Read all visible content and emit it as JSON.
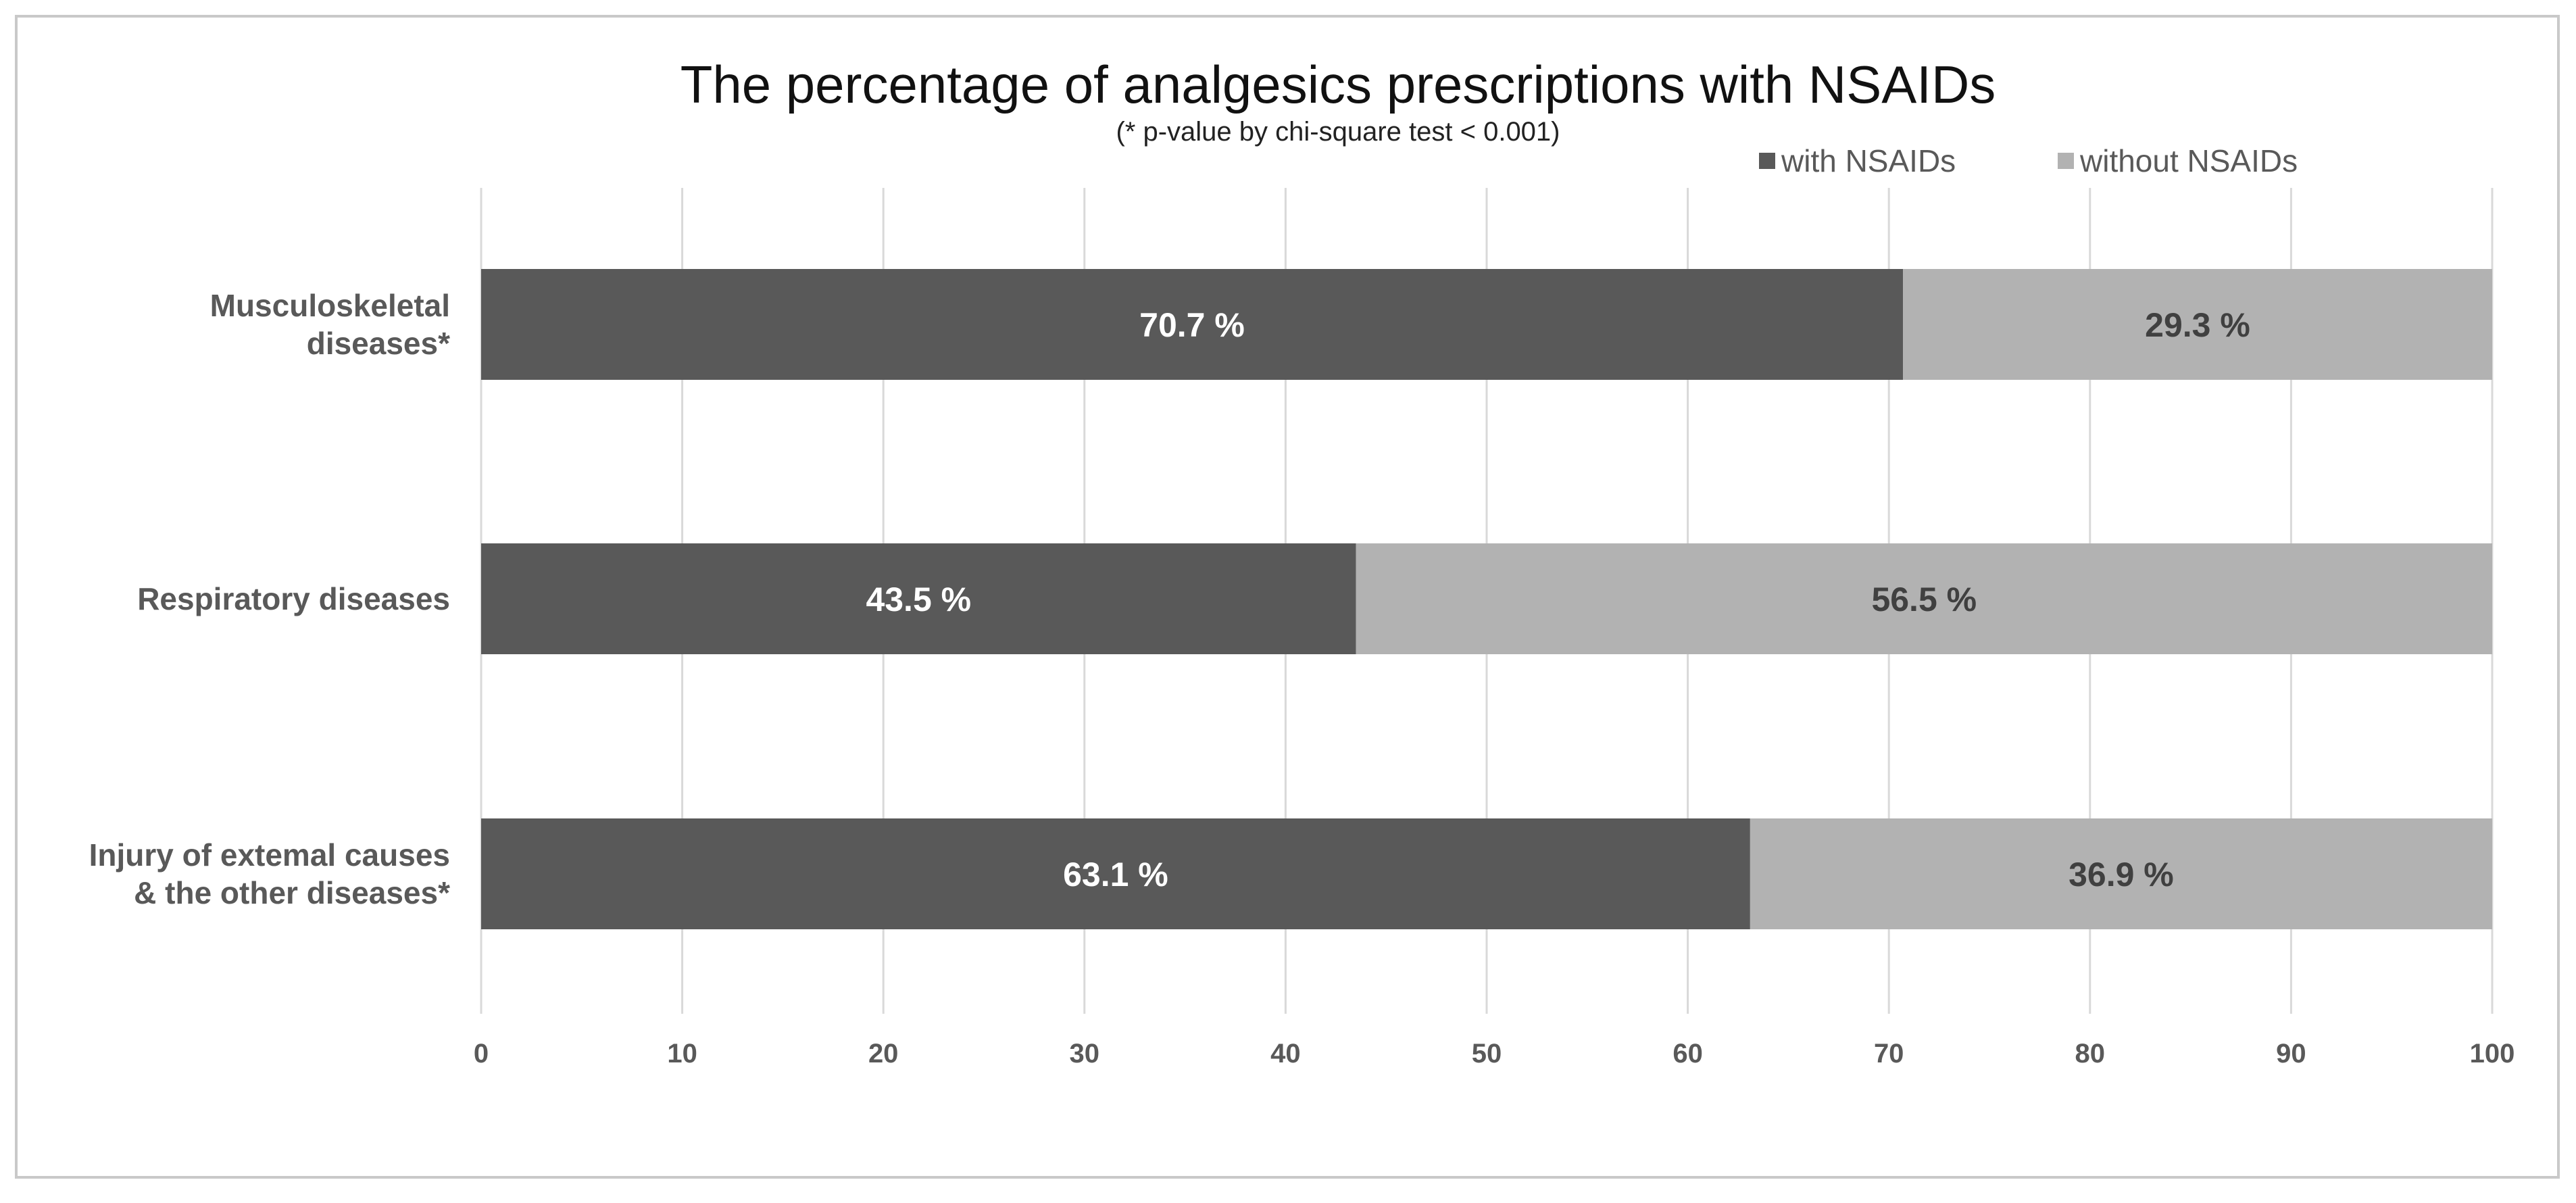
{
  "chart_data": {
    "type": "bar",
    "orientation": "horizontal",
    "stacked": true,
    "title": "The percentage of analgesics prescriptions with NSAIDs",
    "subtitle": "(* p-value by chi-square test < 0.001)",
    "categories": [
      [
        "Musculoskeletal",
        "diseases*"
      ],
      [
        "Respiratory diseases"
      ],
      [
        "Injury of extemal causes",
        "& the other diseases*"
      ]
    ],
    "series": [
      {
        "name": "with NSAIDs",
        "color": "#595959",
        "values": [
          70.7,
          43.5,
          63.1
        ],
        "labels": [
          "70.7 %",
          "43.5 %",
          "63.1 %"
        ]
      },
      {
        "name": "without NSAIDs",
        "color": "#b2b2b2",
        "values": [
          29.3,
          56.5,
          36.9
        ],
        "labels": [
          "29.3 %",
          "56.5 %",
          "36.9 %"
        ]
      }
    ],
    "xlim": [
      0,
      100
    ],
    "xticks": [
      "0",
      "10",
      "20",
      "30",
      "40",
      "50",
      "60",
      "70",
      "80",
      "90",
      "100"
    ],
    "xlabel": "",
    "ylabel": "",
    "grid": true,
    "legend_position": "top-right"
  }
}
